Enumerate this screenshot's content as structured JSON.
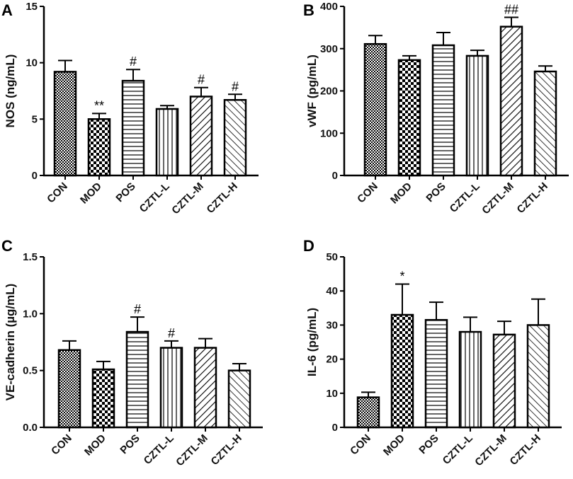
{
  "chart_data": [
    {
      "panel": "A",
      "type": "bar",
      "title": "",
      "xlabel": "",
      "ylabel": "NOS (ng/mL)",
      "ylim": [
        0,
        15
      ],
      "yticks": [
        0,
        5,
        10,
        15
      ],
      "categories": [
        "CON",
        "MOD",
        "POS",
        "CZTL-L",
        "CZTL-M",
        "CZTL-H"
      ],
      "values": [
        9.2,
        5.0,
        8.4,
        5.9,
        7.0,
        6.7
      ],
      "errors": [
        1.0,
        0.5,
        1.0,
        0.3,
        0.8,
        0.5
      ],
      "annotations": [
        "",
        "**",
        "#",
        "",
        "#",
        "#"
      ]
    },
    {
      "panel": "B",
      "type": "bar",
      "title": "",
      "xlabel": "",
      "ylabel": "vWF (pg/mL)",
      "ylim": [
        0,
        400
      ],
      "yticks": [
        0,
        100,
        200,
        300,
        400
      ],
      "categories": [
        "CON",
        "MOD",
        "POS",
        "CZTL-L",
        "CZTL-M",
        "CZTL-H"
      ],
      "values": [
        311,
        273,
        308,
        283,
        352,
        246
      ],
      "errors": [
        20,
        10,
        30,
        13,
        22,
        13
      ],
      "annotations": [
        "",
        "",
        "",
        "",
        "##",
        ""
      ]
    },
    {
      "panel": "C",
      "type": "bar",
      "title": "",
      "xlabel": "",
      "ylabel": "VE-cadherin (µg/mL)",
      "ylim": [
        0,
        1.5
      ],
      "yticks": [
        "0.0",
        "0.5",
        "1.0",
        "1.5"
      ],
      "categories": [
        "CON",
        "MOD",
        "POS",
        "CZTL-L",
        "CZTL-M",
        "CZTL-H"
      ],
      "values": [
        0.68,
        0.51,
        0.84,
        0.7,
        0.7,
        0.5
      ],
      "errors": [
        0.08,
        0.07,
        0.13,
        0.06,
        0.08,
        0.06
      ],
      "annotations": [
        "",
        "",
        "#",
        "#",
        "",
        ""
      ]
    },
    {
      "panel": "D",
      "type": "bar",
      "title": "",
      "xlabel": "",
      "ylabel": "IL-6 (pg/mL)",
      "ylim": [
        0,
        50
      ],
      "yticks": [
        0,
        10,
        20,
        30,
        40,
        50
      ],
      "categories": [
        "CON",
        "MOD",
        "POS",
        "CZTL-L",
        "CZTL-M",
        "CZTL-H"
      ],
      "values": [
        8.8,
        33.0,
        31.5,
        28.0,
        27.2,
        30.0
      ],
      "errors": [
        1.5,
        9.0,
        5.2,
        4.3,
        3.9,
        7.6
      ],
      "annotations": [
        "",
        "*",
        "",
        "",
        "",
        ""
      ]
    }
  ],
  "patterns": [
    "checker-small",
    "checker-large",
    "horizontal",
    "vertical",
    "diagonal-right",
    "diagonal-left"
  ],
  "colors": {
    "ink": "#000000",
    "fill_dark": "#000000",
    "fill_light": "#ffffff"
  }
}
